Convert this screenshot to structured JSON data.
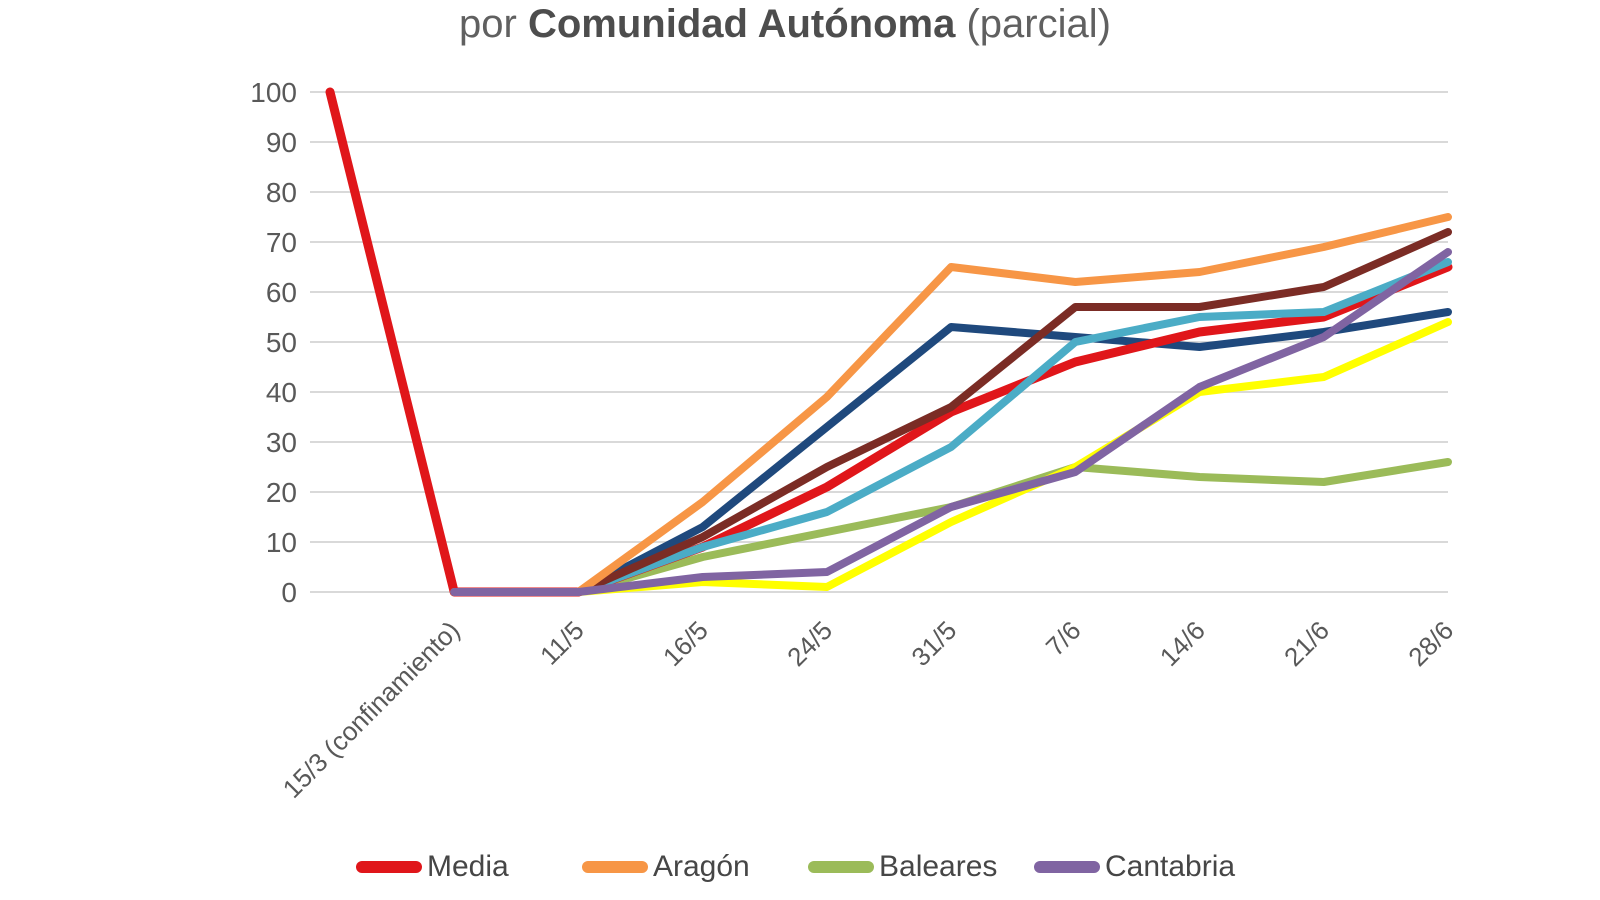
{
  "title": {
    "prefix": "por ",
    "bold": "Comunidad Autónoma",
    "suffix": " (parcial)"
  },
  "chart_data": {
    "type": "line",
    "categories": [
      "",
      "15/3 (confinamiento)",
      "11/5",
      "16/5",
      "24/5",
      "31/5",
      "7/6",
      "14/6",
      "21/6",
      "28/6"
    ],
    "series": [
      {
        "name": "Media",
        "color": "#E0161A",
        "in_legend": true,
        "values": [
          100,
          0,
          0,
          9,
          21,
          36,
          46,
          52,
          55,
          65
        ]
      },
      {
        "name": "Aragón",
        "color": "#F79646",
        "in_legend": true,
        "values": [
          null,
          0,
          0,
          18,
          39,
          65,
          62,
          64,
          69,
          75
        ]
      },
      {
        "name": "Baleares",
        "color": "#9BBB59",
        "in_legend": true,
        "values": [
          null,
          0,
          0,
          7,
          12,
          17,
          25,
          23,
          22,
          26
        ]
      },
      {
        "name": "Cantabria",
        "color": "#8064A2",
        "in_legend": true,
        "values": [
          null,
          0,
          0,
          3,
          4,
          17,
          24,
          41,
          51,
          68
        ]
      },
      {
        "name": "",
        "color": "#1F497D",
        "in_legend": false,
        "values": [
          null,
          0,
          0,
          13,
          33,
          53,
          51,
          49,
          52,
          56
        ]
      },
      {
        "name": "",
        "color": "#4BACC6",
        "in_legend": false,
        "values": [
          null,
          0,
          0,
          9,
          16,
          29,
          50,
          55,
          56,
          66
        ]
      },
      {
        "name": "",
        "color": "#7B2C25",
        "in_legend": false,
        "values": [
          null,
          0,
          0,
          11,
          25,
          37,
          57,
          57,
          61,
          72
        ]
      },
      {
        "name": "",
        "color": "#FFFF00",
        "in_legend": false,
        "values": [
          null,
          0,
          0,
          2,
          1,
          14,
          25,
          40,
          43,
          54
        ]
      }
    ],
    "y_ticks": [
      0,
      10,
      20,
      30,
      40,
      50,
      60,
      70,
      80,
      90,
      100
    ],
    "ylim": [
      0,
      100
    ],
    "grid": "horizontal",
    "gridline_color": "#D9D9D9",
    "axis_label_color": "#595959",
    "legend_position": "bottom"
  }
}
